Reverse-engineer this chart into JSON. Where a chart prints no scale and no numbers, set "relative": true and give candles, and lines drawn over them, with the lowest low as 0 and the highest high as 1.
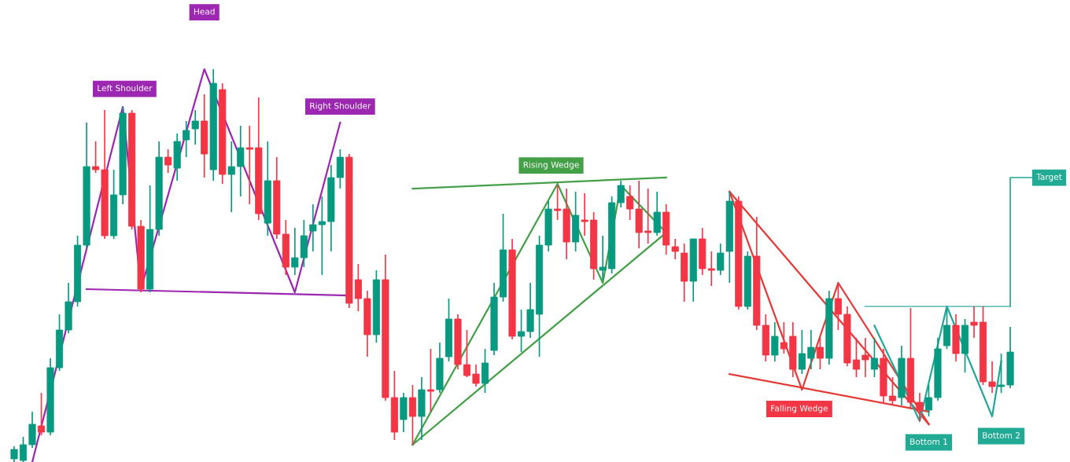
{
  "chart_data": {
    "type": "candlestick",
    "relative": true,
    "categories": [
      null,
      null,
      null,
      null,
      null,
      null,
      null,
      null,
      null,
      null,
      null,
      null,
      null,
      null,
      null,
      null,
      null,
      null,
      null,
      null,
      null,
      null,
      null,
      null,
      null,
      null,
      null,
      null,
      null,
      null,
      null,
      null,
      null,
      null,
      null,
      null,
      null,
      null,
      null,
      null,
      null,
      null,
      null,
      null,
      null,
      null,
      null,
      null,
      null,
      null,
      null,
      null,
      null,
      null,
      null,
      null,
      null,
      null,
      null,
      null,
      null,
      null,
      null,
      null,
      null,
      null,
      null,
      null,
      null,
      null,
      null,
      null,
      null,
      null,
      null,
      null,
      null,
      null,
      null,
      null,
      null,
      null,
      null,
      null,
      null,
      null,
      null,
      null,
      null,
      null,
      null,
      null,
      null,
      null,
      null,
      null,
      null,
      null,
      null,
      null,
      null,
      null,
      null,
      null,
      null,
      null,
      null,
      null,
      null,
      null,
      null
    ],
    "ohlc": [
      [
        0.008,
        0.04,
        0,
        0.032
      ],
      [
        0.004,
        0.064,
        0,
        0.044
      ],
      [
        0.044,
        0.128,
        0.036,
        0.096
      ],
      [
        0.092,
        0.176,
        0.068,
        0.076
      ],
      [
        0.076,
        0.264,
        0.068,
        0.24
      ],
      [
        0.24,
        0.376,
        0.232,
        0.336
      ],
      [
        0.336,
        0.456,
        0.328,
        0.408
      ],
      [
        0.408,
        0.576,
        0.396,
        0.552
      ],
      [
        0.552,
        0.864,
        0.544,
        0.752
      ],
      [
        0.752,
        0.816,
        0.736,
        0.744
      ],
      [
        0.744,
        0.896,
        0.568,
        0.576
      ],
      [
        0.576,
        0.744,
        0.568,
        0.68
      ],
      [
        0.68,
        0.904,
        0.656,
        0.888
      ],
      [
        0.888,
        0.896,
        0.592,
        0.6
      ],
      [
        0.6,
        0.616,
        0.432,
        0.44
      ],
      [
        0.44,
        0.704,
        0.432,
        0.592
      ],
      [
        0.592,
        0.816,
        0.576,
        0.776
      ],
      [
        0.776,
        0.796,
        0.736,
        0.756
      ],
      [
        0.748,
        0.836,
        0.716,
        0.816
      ],
      [
        0.82,
        0.868,
        0.776,
        0.844
      ],
      [
        0.848,
        0.896,
        0.808,
        0.868
      ],
      [
        0.868,
        0.936,
        0.724,
        0.784
      ],
      [
        0.744,
        1.0,
        0.716,
        0.964
      ],
      [
        0.948,
        0.964,
        0.708,
        0.732
      ],
      [
        0.732,
        0.816,
        0.636,
        0.752
      ],
      [
        0.752,
        0.856,
        0.676,
        0.8
      ],
      [
        0.8,
        0.856,
        0.656,
        0.796
      ],
      [
        0.8,
        0.928,
        0.616,
        0.632
      ],
      [
        0.608,
        0.816,
        0.576,
        0.716
      ],
      [
        0.716,
        0.776,
        0.568,
        0.58
      ],
      [
        0.58,
        0.616,
        0.476,
        0.496
      ],
      [
        0.496,
        0.596,
        0.476,
        0.52
      ],
      [
        0.52,
        0.616,
        0.496,
        0.576
      ],
      [
        0.588,
        0.656,
        0.536,
        0.604
      ],
      [
        0.604,
        0.676,
        0.476,
        0.612
      ],
      [
        0.612,
        0.756,
        0.536,
        0.724
      ],
      [
        0.724,
        0.796,
        0.696,
        0.776
      ],
      [
        0.776,
        0.784,
        0.392,
        0.404
      ],
      [
        0.464,
        0.504,
        0.384,
        0.416
      ],
      [
        0.416,
        0.436,
        0.268,
        0.324
      ],
      [
        0.324,
        0.488,
        0.304,
        0.464
      ],
      [
        0.464,
        0.528,
        0.156,
        0.164
      ],
      [
        0.164,
        0.232,
        0.056,
        0.076
      ],
      [
        0.108,
        0.176,
        0.076,
        0.164
      ],
      [
        0.164,
        0.196,
        0.044,
        0.116
      ],
      [
        0.116,
        0.216,
        0.056,
        0.184
      ],
      [
        0.184,
        0.288,
        0.128,
        0.18
      ],
      [
        0.184,
        0.304,
        0.176,
        0.264
      ],
      [
        0.268,
        0.416,
        0.256,
        0.364
      ],
      [
        0.364,
        0.376,
        0.236,
        0.248
      ],
      [
        0.248,
        0.336,
        0.216,
        0.22
      ],
      [
        0.224,
        0.248,
        0.192,
        0.2
      ],
      [
        0.2,
        0.288,
        0.176,
        0.252
      ],
      [
        0.284,
        0.456,
        0.272,
        0.42
      ],
      [
        0.42,
        0.632,
        0.408,
        0.54
      ],
      [
        0.54,
        0.568,
        0.312,
        0.32
      ],
      [
        0.32,
        0.388,
        0.28,
        0.332
      ],
      [
        0.332,
        0.456,
        0.316,
        0.388
      ],
      [
        0.376,
        0.576,
        0.268,
        0.552
      ],
      [
        0.552,
        0.664,
        0.536,
        0.644
      ],
      [
        0.644,
        0.704,
        0.616,
        0.64
      ],
      [
        0.644,
        0.696,
        0.516,
        0.56
      ],
      [
        0.56,
        0.688,
        0.536,
        0.628
      ],
      [
        0.616,
        0.684,
        0.576,
        0.612
      ],
      [
        0.616,
        0.636,
        0.464,
        0.492
      ],
      [
        0.488,
        0.576,
        0.464,
        0.496
      ],
      [
        0.492,
        0.676,
        0.48,
        0.66
      ],
      [
        0.66,
        0.716,
        0.648,
        0.704
      ],
      [
        0.676,
        0.704,
        0.616,
        0.644
      ],
      [
        0.644,
        0.716,
        0.544,
        0.584
      ],
      [
        0.588,
        0.696,
        0.556,
        0.584
      ],
      [
        0.584,
        0.688,
        0.576,
        0.636
      ],
      [
        0.636,
        0.656,
        0.528,
        0.552
      ],
      [
        0.548,
        0.568,
        0.516,
        0.536
      ],
      [
        0.532,
        0.556,
        0.408,
        0.46
      ],
      [
        0.46,
        0.568,
        0.408,
        0.568
      ],
      [
        0.568,
        0.596,
        0.476,
        0.492
      ],
      [
        0.492,
        0.536,
        0.448,
        0.488
      ],
      [
        0.488,
        0.556,
        0.476,
        0.532
      ],
      [
        0.536,
        0.688,
        0.456,
        0.664
      ],
      [
        0.664,
        0.676,
        0.388,
        0.396
      ],
      [
        0.396,
        0.536,
        0.388,
        0.524
      ],
      [
        0.524,
        0.624,
        0.336,
        0.348
      ],
      [
        0.348,
        0.376,
        0.256,
        0.272
      ],
      [
        0.272,
        0.356,
        0.256,
        0.32
      ],
      [
        0.304,
        0.356,
        0.276,
        0.288
      ],
      [
        0.32,
        0.356,
        0.216,
        0.236
      ],
      [
        0.236,
        0.336,
        0.224,
        0.276
      ],
      [
        0.264,
        0.336,
        0.236,
        0.292
      ],
      [
        0.292,
        0.316,
        0.236,
        0.264
      ],
      [
        0.264,
        0.436,
        0.248,
        0.416
      ],
      [
        0.416,
        0.456,
        0.336,
        0.376
      ],
      [
        0.376,
        0.396,
        0.244,
        0.252
      ],
      [
        0.26,
        0.316,
        0.216,
        0.236
      ],
      [
        0.272,
        0.316,
        0.216,
        0.26
      ],
      [
        0.236,
        0.316,
        0.216,
        0.264
      ],
      [
        0.264,
        0.288,
        0.152,
        0.168
      ],
      [
        0.168,
        0.216,
        0.144,
        0.156
      ],
      [
        0.164,
        0.296,
        0.144,
        0.264
      ],
      [
        0.264,
        0.392,
        0.136,
        0.152
      ],
      [
        0.152,
        0.176,
        0.104,
        0.132
      ],
      [
        0.132,
        0.196,
        0.116,
        0.164
      ],
      [
        0.164,
        0.316,
        0.156,
        0.288
      ],
      [
        0.296,
        0.388,
        0.288,
        0.348
      ],
      [
        0.348,
        0.376,
        0.256,
        0.276
      ],
      [
        0.276,
        0.364,
        0.228,
        0.348
      ],
      [
        0.356,
        0.396,
        0.316,
        0.348
      ],
      [
        0.356,
        0.396,
        0.196,
        0.204
      ],
      [
        0.204,
        0.256,
        0.176,
        0.192
      ],
      [
        0.192,
        0.276,
        0.176,
        0.196
      ],
      [
        0.196,
        0.344,
        0.188,
        0.28
      ]
    ],
    "colors": [
      "#089981",
      "#089981",
      "#089981",
      "#f23645",
      "#089981",
      "#089981",
      "#089981",
      "#089981",
      "#089981",
      "#f23645",
      "#f23645",
      "#089981",
      "#089981",
      "#f23645",
      "#f23645",
      "#089981",
      "#089981",
      "#f23645",
      "#089981",
      "#089981",
      "#089981",
      "#f23645",
      "#089981",
      "#f23645",
      "#089981",
      "#089981",
      "#f23645",
      "#f23645",
      "#089981",
      "#f23645",
      "#f23645",
      "#089981",
      "#089981",
      "#089981",
      "#089981",
      "#089981",
      "#089981",
      "#f23645",
      "#f23645",
      "#f23645",
      "#089981",
      "#f23645",
      "#f23645",
      "#089981",
      "#f23645",
      "#089981",
      "#f23645",
      "#089981",
      "#089981",
      "#f23645",
      "#f23645",
      "#f23645",
      "#089981",
      "#089981",
      "#089981",
      "#f23645",
      "#089981",
      "#089981",
      "#089981",
      "#089981",
      "#f23645",
      "#f23645",
      "#089981",
      "#f23645",
      "#f23645",
      "#089981",
      "#089981",
      "#089981",
      "#f23645",
      "#f23645",
      "#f23645",
      "#089981",
      "#f23645",
      "#f23645",
      "#f23645",
      "#089981",
      "#f23645",
      "#f23645",
      "#089981",
      "#089981",
      "#f23645",
      "#089981",
      "#f23645",
      "#f23645",
      "#089981",
      "#f23645",
      "#f23645",
      "#089981",
      "#089981",
      "#f23645",
      "#089981",
      "#f23645",
      "#f23645",
      "#f23645",
      "#f23645",
      "#089981",
      "#f23645",
      "#f23645",
      "#089981",
      "#f23645",
      "#f23645",
      "#089981",
      "#089981",
      "#089981",
      "#f23645",
      "#089981",
      "#f23645",
      "#f23645",
      "#f23645",
      "#089981",
      "#089981"
    ],
    "series": [
      {
        "type": "line",
        "color": "#9c27b0",
        "values": [
          null,
          null,
          0,
          null,
          null,
          null,
          null,
          null,
          null,
          null,
          null,
          null,
          0.904,
          null,
          0.44,
          null,
          null,
          null,
          null,
          null,
          null,
          1.0,
          null,
          null,
          null,
          null,
          null,
          null,
          null,
          null,
          null,
          0.432,
          null,
          null,
          null,
          null,
          0.864,
          null,
          null,
          null,
          null,
          null,
          null,
          null,
          null,
          null,
          null,
          null,
          null,
          null,
          null,
          null,
          null,
          null,
          null,
          null,
          null,
          null,
          null,
          null,
          null,
          null,
          null,
          null,
          null,
          null,
          null,
          null,
          null,
          null,
          null,
          null,
          null,
          null,
          null,
          null,
          null,
          null,
          null,
          null,
          null,
          null,
          null,
          null,
          null,
          null,
          null,
          null,
          null,
          null,
          null,
          null,
          null,
          null,
          null,
          null,
          null,
          null,
          null,
          null,
          null,
          null,
          null,
          null,
          null,
          null,
          null,
          null,
          null,
          null,
          null
        ]
      },
      {
        "type": "line",
        "color": "#9c27b0",
        "values": [
          null,
          null,
          null,
          null,
          null,
          null,
          null,
          null,
          0.44,
          null,
          null,
          null,
          null,
          null,
          null,
          null,
          null,
          null,
          null,
          null,
          null,
          null,
          null,
          null,
          null,
          null,
          null,
          null,
          null,
          null,
          null,
          null,
          null,
          null,
          null,
          null,
          null,
          0.424,
          null,
          null,
          null,
          null,
          null,
          null,
          null,
          null,
          null,
          null,
          null,
          null,
          null,
          null,
          null,
          null,
          null,
          null,
          null,
          null,
          null,
          null,
          null,
          null,
          null,
          null,
          null,
          null,
          null,
          null,
          null,
          null,
          null,
          null,
          null,
          null,
          null,
          null,
          null,
          null,
          null,
          null,
          null,
          null,
          null,
          null,
          null,
          null,
          null,
          null,
          null,
          null,
          null,
          null,
          null,
          null,
          null,
          null,
          null,
          null,
          null,
          null,
          null,
          null,
          null,
          null,
          null,
          null,
          null,
          null,
          null,
          null,
          null
        ]
      },
      {
        "type": "line",
        "color": "#43a047",
        "values": [
          null,
          null,
          null,
          null,
          null,
          null,
          null,
          null,
          null,
          null,
          null,
          null,
          null,
          null,
          null,
          null,
          null,
          null,
          null,
          null,
          null,
          null,
          null,
          null,
          null,
          null,
          null,
          null,
          null,
          null,
          null,
          null,
          null,
          null,
          null,
          null,
          null,
          null,
          null,
          null,
          null,
          null,
          null,
          null,
          0.696,
          null,
          null,
          null,
          null,
          null,
          null,
          null,
          null,
          null,
          null,
          null,
          null,
          null,
          null,
          null,
          null,
          null,
          null,
          null,
          null,
          null,
          null,
          null,
          null,
          null,
          null,
          null,
          0.724,
          null,
          null,
          null,
          null,
          null,
          null,
          null,
          null,
          null,
          null,
          null,
          null,
          null,
          null,
          null,
          null,
          null,
          null,
          null,
          null,
          null,
          null,
          null,
          null,
          null,
          null,
          null,
          null,
          null,
          null,
          null,
          null,
          null,
          null,
          null,
          null,
          null,
          null
        ]
      },
      {
        "type": "line",
        "color": "#43a047",
        "values": [
          null,
          null,
          null,
          null,
          null,
          null,
          null,
          null,
          null,
          null,
          null,
          null,
          null,
          null,
          null,
          null,
          null,
          null,
          null,
          null,
          null,
          null,
          null,
          null,
          null,
          null,
          null,
          null,
          null,
          null,
          null,
          null,
          null,
          null,
          null,
          null,
          null,
          null,
          null,
          null,
          null,
          null,
          null,
          null,
          0.044,
          null,
          null,
          null,
          null,
          null,
          null,
          null,
          null,
          null,
          null,
          null,
          null,
          null,
          null,
          null,
          null,
          null,
          null,
          null,
          null,
          null,
          null,
          null,
          null,
          null,
          null,
          null,
          0.584,
          null,
          null,
          null,
          null,
          null,
          null,
          null,
          null,
          null,
          null,
          null,
          null,
          null,
          null,
          null,
          null,
          null,
          null,
          null,
          null,
          null,
          null,
          null,
          null,
          null,
          null,
          null,
          null,
          null,
          null,
          null,
          null,
          null,
          null,
          null,
          null,
          null,
          null
        ]
      },
      {
        "type": "line",
        "color": "#43a047",
        "values": [
          null,
          null,
          null,
          null,
          null,
          null,
          null,
          null,
          null,
          null,
          null,
          null,
          null,
          null,
          null,
          null,
          null,
          null,
          null,
          null,
          null,
          null,
          null,
          null,
          null,
          null,
          null,
          null,
          null,
          null,
          null,
          null,
          null,
          null,
          null,
          null,
          null,
          null,
          null,
          null,
          null,
          null,
          null,
          null,
          0.044,
          null,
          null,
          null,
          null,
          null,
          null,
          null,
          null,
          null,
          null,
          null,
          null,
          null,
          null,
          null,
          0.708,
          null,
          null,
          null,
          null,
          0.456,
          null,
          0.704,
          null,
          null,
          null,
          null,
          0.584,
          null,
          null,
          null,
          null,
          null,
          null,
          null,
          null,
          null,
          null,
          null,
          null,
          null,
          null,
          null,
          null,
          null,
          null,
          null,
          null,
          null,
          null,
          null,
          null,
          null,
          null,
          null,
          null,
          null,
          null,
          null,
          null,
          null,
          null,
          null,
          null,
          null,
          null
        ]
      },
      {
        "type": "line",
        "color": "#e53935",
        "values": [
          null,
          null,
          null,
          null,
          null,
          null,
          null,
          null,
          null,
          null,
          null,
          null,
          null,
          null,
          null,
          null,
          null,
          null,
          null,
          null,
          null,
          null,
          null,
          null,
          null,
          null,
          null,
          null,
          null,
          null,
          null,
          null,
          null,
          null,
          null,
          null,
          null,
          null,
          null,
          null,
          null,
          null,
          null,
          null,
          null,
          null,
          null,
          null,
          null,
          null,
          null,
          null,
          null,
          null,
          null,
          null,
          null,
          null,
          null,
          null,
          null,
          null,
          null,
          null,
          null,
          null,
          null,
          null,
          null,
          null,
          null,
          null,
          null,
          null,
          null,
          null,
          null,
          null,
          null,
          0.688,
          null,
          null,
          null,
          null,
          null,
          null,
          null,
          null,
          null,
          null,
          null,
          null,
          null,
          null,
          null,
          null,
          null,
          null,
          null,
          null,
          null,
          0.096,
          null,
          null,
          null,
          null,
          null,
          null,
          null,
          null,
          null
        ]
      },
      {
        "type": "line",
        "color": "#e53935",
        "values": [
          null,
          null,
          null,
          null,
          null,
          null,
          null,
          null,
          null,
          null,
          null,
          null,
          null,
          null,
          null,
          null,
          null,
          null,
          null,
          null,
          null,
          null,
          null,
          null,
          null,
          null,
          null,
          null,
          null,
          null,
          null,
          null,
          null,
          null,
          null,
          null,
          null,
          null,
          null,
          null,
          null,
          null,
          null,
          null,
          null,
          null,
          null,
          null,
          null,
          null,
          null,
          null,
          null,
          null,
          null,
          null,
          null,
          null,
          null,
          null,
          null,
          null,
          null,
          null,
          null,
          null,
          null,
          null,
          null,
          null,
          null,
          null,
          null,
          null,
          null,
          null,
          null,
          null,
          null,
          0.224,
          null,
          null,
          null,
          null,
          null,
          null,
          null,
          null,
          null,
          null,
          null,
          null,
          null,
          null,
          null,
          null,
          null,
          null,
          null,
          null,
          null,
          0.128,
          null,
          null,
          null,
          null,
          null,
          null,
          null,
          null,
          null
        ]
      },
      {
        "type": "line",
        "color": "#e53935",
        "values": [
          null,
          null,
          null,
          null,
          null,
          null,
          null,
          null,
          null,
          null,
          null,
          null,
          null,
          null,
          null,
          null,
          null,
          null,
          null,
          null,
          null,
          null,
          null,
          null,
          null,
          null,
          null,
          null,
          null,
          null,
          null,
          null,
          null,
          null,
          null,
          null,
          null,
          null,
          null,
          null,
          null,
          null,
          null,
          null,
          null,
          null,
          null,
          null,
          null,
          null,
          null,
          null,
          null,
          null,
          null,
          null,
          null,
          null,
          null,
          null,
          null,
          null,
          null,
          null,
          null,
          null,
          null,
          null,
          null,
          null,
          null,
          null,
          null,
          null,
          null,
          null,
          null,
          null,
          null,
          0.688,
          null,
          null,
          null,
          null,
          null,
          null,
          null,
          0.184,
          null,
          null,
          null,
          0.456,
          null,
          null,
          null,
          null,
          null,
          null,
          null,
          null,
          null,
          0.096,
          null,
          null,
          null,
          null,
          null,
          null,
          null,
          null,
          null
        ]
      },
      {
        "type": "line",
        "color": "#80cbc4",
        "values": [
          null,
          null,
          null,
          null,
          null,
          null,
          null,
          null,
          null,
          null,
          null,
          null,
          null,
          null,
          null,
          null,
          null,
          null,
          null,
          null,
          null,
          null,
          null,
          null,
          null,
          null,
          null,
          null,
          null,
          null,
          null,
          null,
          null,
          null,
          null,
          null,
          null,
          null,
          null,
          null,
          null,
          null,
          null,
          null,
          null,
          null,
          null,
          null,
          null,
          null,
          null,
          null,
          null,
          null,
          null,
          null,
          null,
          null,
          null,
          null,
          null,
          null,
          null,
          null,
          null,
          null,
          null,
          null,
          null,
          null,
          null,
          null,
          null,
          null,
          null,
          null,
          null,
          null,
          null,
          null,
          null,
          null,
          null,
          null,
          null,
          null,
          null,
          null,
          null,
          null,
          null,
          null,
          null,
          null,
          0.396,
          null,
          null,
          null,
          null,
          null,
          null,
          null,
          null,
          null,
          null,
          null,
          null,
          null,
          null,
          null,
          0.396
        ]
      },
      {
        "type": "line",
        "color": "#26a69a",
        "values": [
          null,
          null,
          null,
          null,
          null,
          null,
          null,
          null,
          null,
          null,
          null,
          null,
          null,
          null,
          null,
          null,
          null,
          null,
          null,
          null,
          null,
          null,
          null,
          null,
          null,
          null,
          null,
          null,
          null,
          null,
          null,
          null,
          null,
          null,
          null,
          null,
          null,
          null,
          null,
          null,
          null,
          null,
          null,
          null,
          null,
          null,
          null,
          null,
          null,
          null,
          null,
          null,
          null,
          null,
          null,
          null,
          null,
          null,
          null,
          null,
          null,
          null,
          null,
          null,
          null,
          null,
          null,
          null,
          null,
          null,
          null,
          null,
          null,
          null,
          null,
          null,
          null,
          null,
          null,
          null,
          null,
          null,
          null,
          null,
          null,
          null,
          null,
          null,
          null,
          null,
          null,
          null,
          null,
          null,
          null,
          0.347,
          null,
          null,
          null,
          null,
          0.104,
          null,
          null,
          0.396,
          null,
          null,
          null,
          null,
          0.116,
          0.256,
          null
        ]
      }
    ],
    "annotations": [
      "Left Shoulder",
      "Head",
      "Right Shoulder",
      "Rising Wedge",
      "Falling Wedge",
      "Bottom 1",
      "Bottom 2",
      "Target"
    ]
  }
}
